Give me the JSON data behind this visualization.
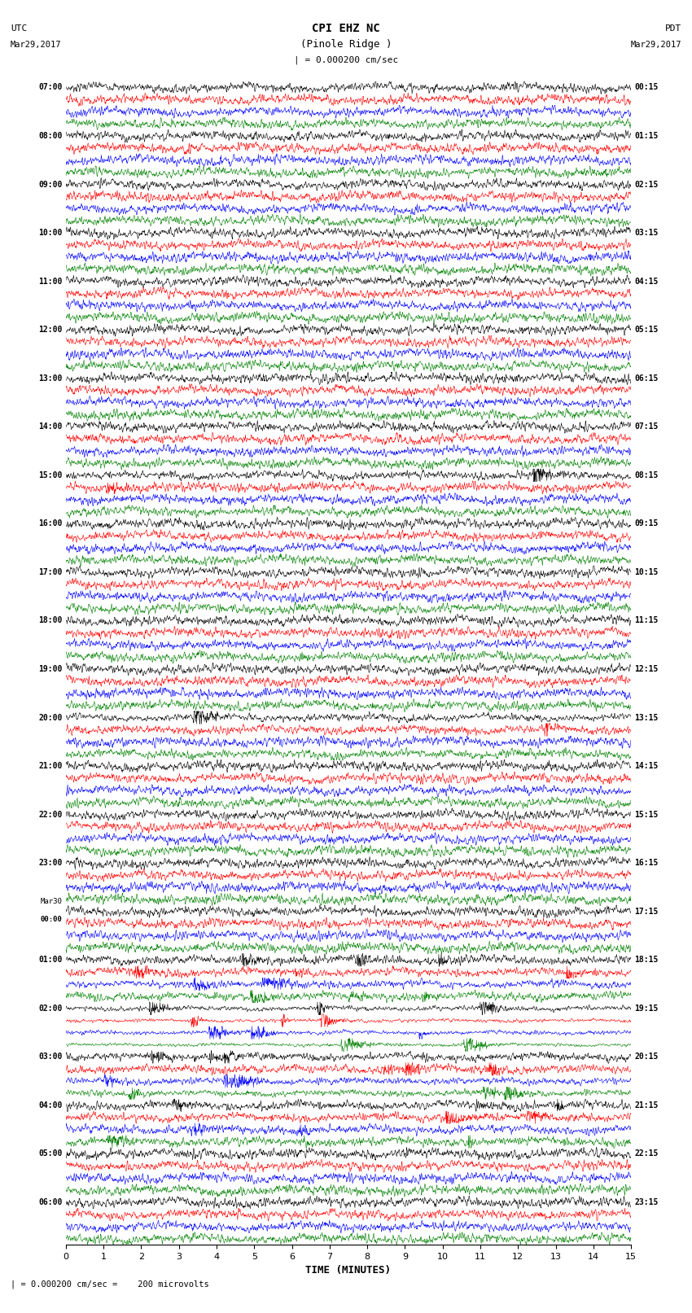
{
  "title_line1": "CPI EHZ NC",
  "title_line2": "(Pinole Ridge )",
  "scale_label": "| = 0.000200 cm/sec",
  "utc_label": "UTC\nMar29,2017",
  "pdt_label": "PDT\nMar29,2017",
  "bottom_label": "| = 0.000200 cm/sec =    200 microvolts",
  "xlabel": "TIME (MINUTES)",
  "xlim": [
    0,
    15
  ],
  "xticks": [
    0,
    1,
    2,
    3,
    4,
    5,
    6,
    7,
    8,
    9,
    10,
    11,
    12,
    13,
    14,
    15
  ],
  "colors": [
    "black",
    "red",
    "blue",
    "green"
  ],
  "left_times": [
    "07:00",
    "08:00",
    "09:00",
    "10:00",
    "11:00",
    "12:00",
    "13:00",
    "14:00",
    "15:00",
    "16:00",
    "17:00",
    "18:00",
    "19:00",
    "20:00",
    "21:00",
    "22:00",
    "23:00",
    "Mar30\n00:00",
    "01:00",
    "02:00",
    "03:00",
    "04:00",
    "05:00",
    "06:00"
  ],
  "right_times": [
    "00:15",
    "01:15",
    "02:15",
    "03:15",
    "04:15",
    "05:15",
    "06:15",
    "07:15",
    "08:15",
    "09:15",
    "10:15",
    "11:15",
    "12:15",
    "13:15",
    "14:15",
    "15:15",
    "16:15",
    "17:15",
    "18:15",
    "19:15",
    "20:15",
    "21:15",
    "22:15",
    "23:15"
  ],
  "n_rows": 96,
  "n_groups": 24,
  "bg_color": "white",
  "figsize": [
    8.5,
    16.13
  ],
  "dpi": 100,
  "trace_lw": 0.4,
  "samples": 1800
}
